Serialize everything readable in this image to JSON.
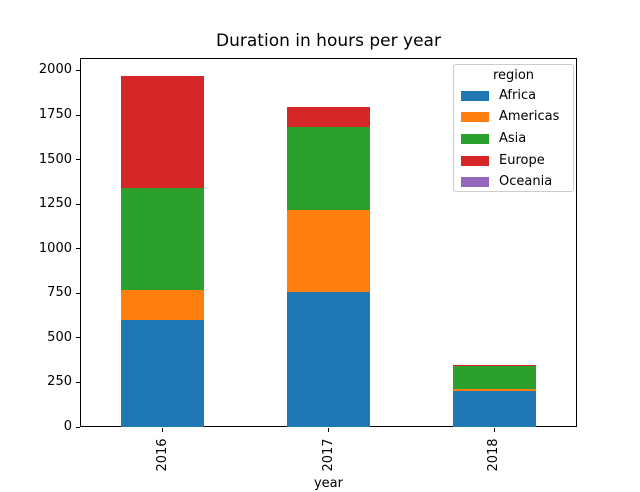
{
  "figure": {
    "background": "#ffffff"
  },
  "chart_data": {
    "type": "bar",
    "stacked": true,
    "title": "Duration in hours per year",
    "xlabel": "year",
    "ylabel": "",
    "categories": [
      "2016",
      "2017",
      "2018"
    ],
    "series": [
      {
        "name": "Africa",
        "color": "#1f77b4",
        "values": [
          600,
          760,
          200
        ]
      },
      {
        "name": "Americas",
        "color": "#ff7f0e",
        "values": [
          170,
          455,
          15
        ]
      },
      {
        "name": "Asia",
        "color": "#2ca02c",
        "values": [
          570,
          470,
          125
        ]
      },
      {
        "name": "Europe",
        "color": "#d62728",
        "values": [
          630,
          110,
          10
        ]
      },
      {
        "name": "Oceania",
        "color": "#9467bd",
        "values": [
          0,
          0,
          0
        ]
      }
    ],
    "totals": [
      1970,
      1795,
      350
    ],
    "ylim": [
      0,
      2070
    ],
    "yticks": [
      0,
      250,
      500,
      750,
      1000,
      1250,
      1500,
      1750,
      2000
    ],
    "xtick_rotation": 90,
    "grid": false,
    "legend": {
      "title": "region",
      "position": "upper right"
    }
  }
}
